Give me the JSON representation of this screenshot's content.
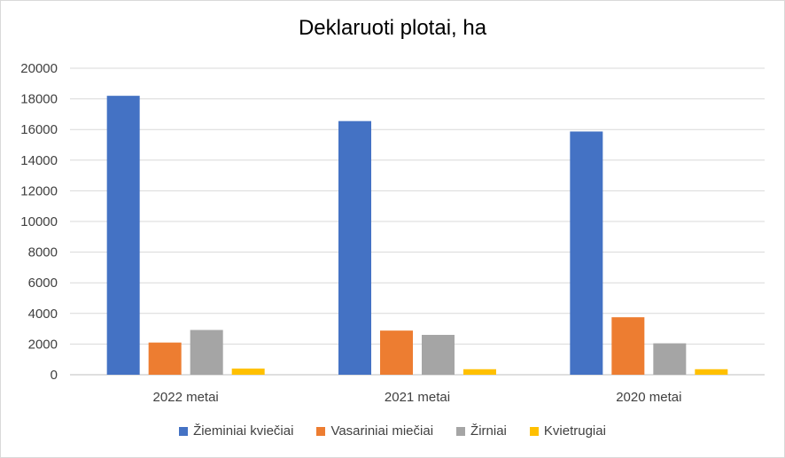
{
  "chart_data": {
    "type": "bar",
    "title": "Deklaruoti plotai, ha",
    "categories": [
      "2022 metai",
      "2021 metai",
      "2020 metai"
    ],
    "ylim": [
      0,
      20000
    ],
    "yticks": [
      0,
      2000,
      4000,
      6000,
      8000,
      10000,
      12000,
      14000,
      16000,
      18000,
      20000
    ],
    "grid": true,
    "legend_position": "bottom",
    "series": [
      {
        "name": "Žieminiai kviečiai",
        "color": "#4472C4",
        "values": [
          18200,
          16550,
          15870
        ]
      },
      {
        "name": "Vasariniai miečiai",
        "color": "#ED7D31",
        "values": [
          2100,
          2880,
          3750
        ]
      },
      {
        "name": "Žirniai",
        "color": "#A5A5A5",
        "values": [
          2920,
          2600,
          2050
        ]
      },
      {
        "name": "Kvietrugiai",
        "color": "#FFC000",
        "values": [
          400,
          360,
          360
        ]
      }
    ]
  }
}
